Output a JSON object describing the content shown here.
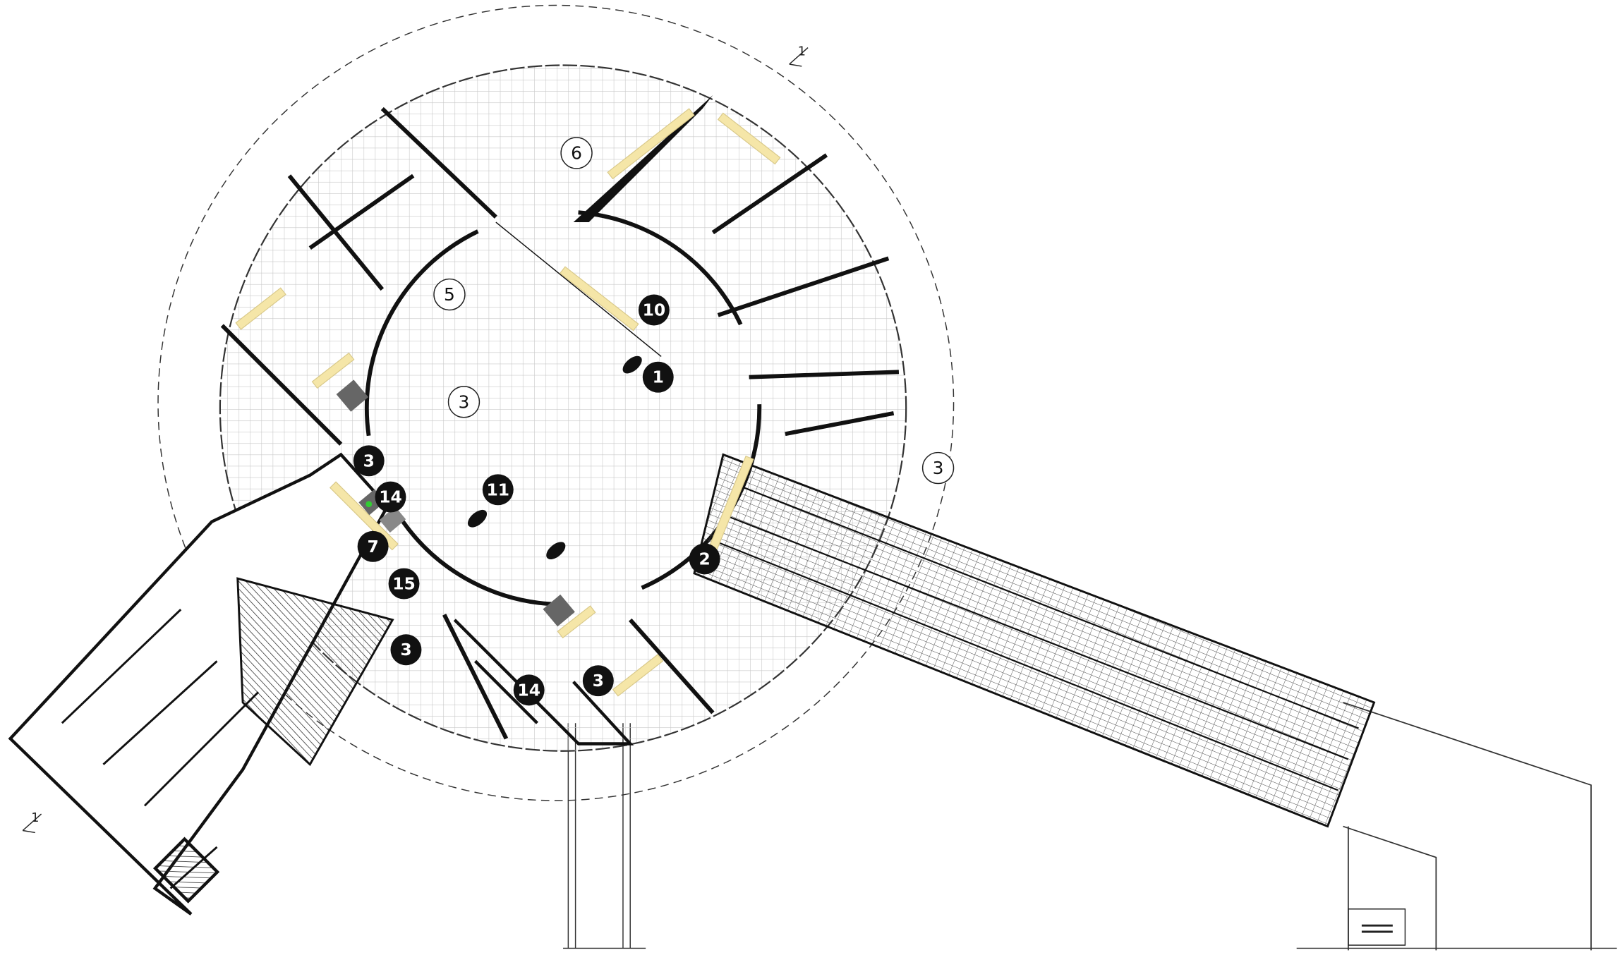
{
  "room_labels": [
    "6",
    "5",
    "3",
    "3"
  ],
  "markers": [
    "10",
    "1",
    "3",
    "14",
    "11",
    "7",
    "15",
    "2",
    "3",
    "3",
    "14"
  ],
  "section_marks": [
    "1",
    "1"
  ]
}
